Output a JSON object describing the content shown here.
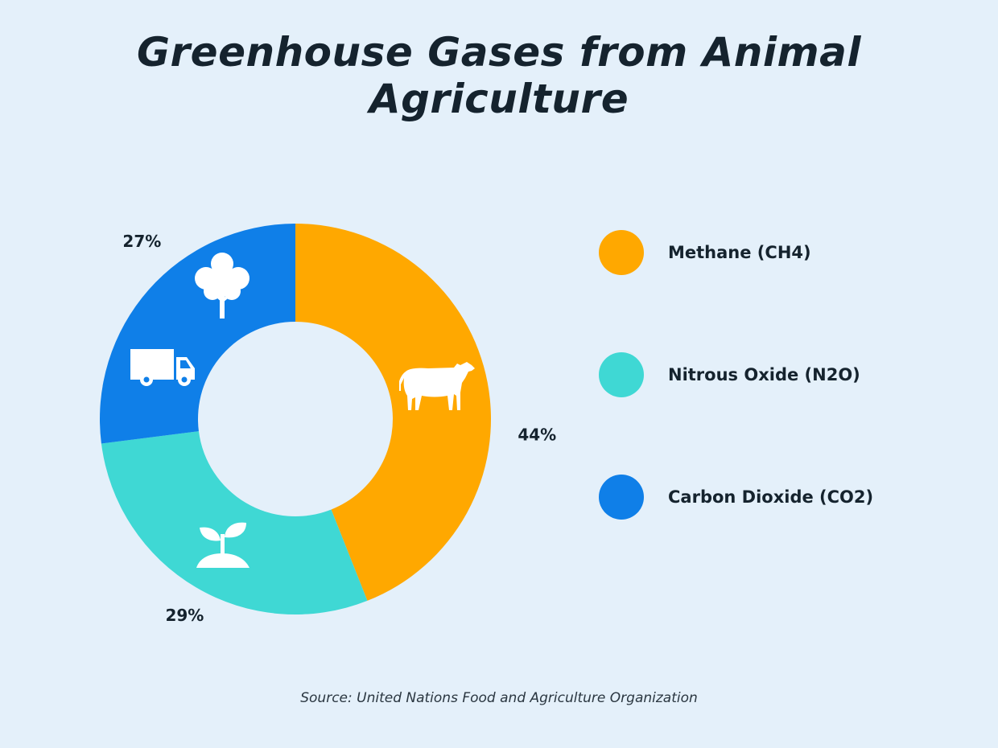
{
  "chart_data": {
    "type": "pie",
    "title": "Greenhouse Gases from Animal Agriculture",
    "categories": [
      "Methane (CH4)",
      "Nitrous Oxide (N2O)",
      "Carbon Dioxide (CO2)"
    ],
    "values": [
      44,
      29,
      27
    ],
    "value_labels": [
      "44%",
      "29%",
      "27%"
    ],
    "colors": [
      "#ffa800",
      "#3fd8d4",
      "#0f7fe8"
    ],
    "donut": true,
    "legend_position": "right",
    "segment_icons": [
      "cow-icon",
      "sprout-icon",
      "tree-icon",
      "truck-icon"
    ]
  },
  "source": "Source: United Nations Food and Agriculture Organization"
}
